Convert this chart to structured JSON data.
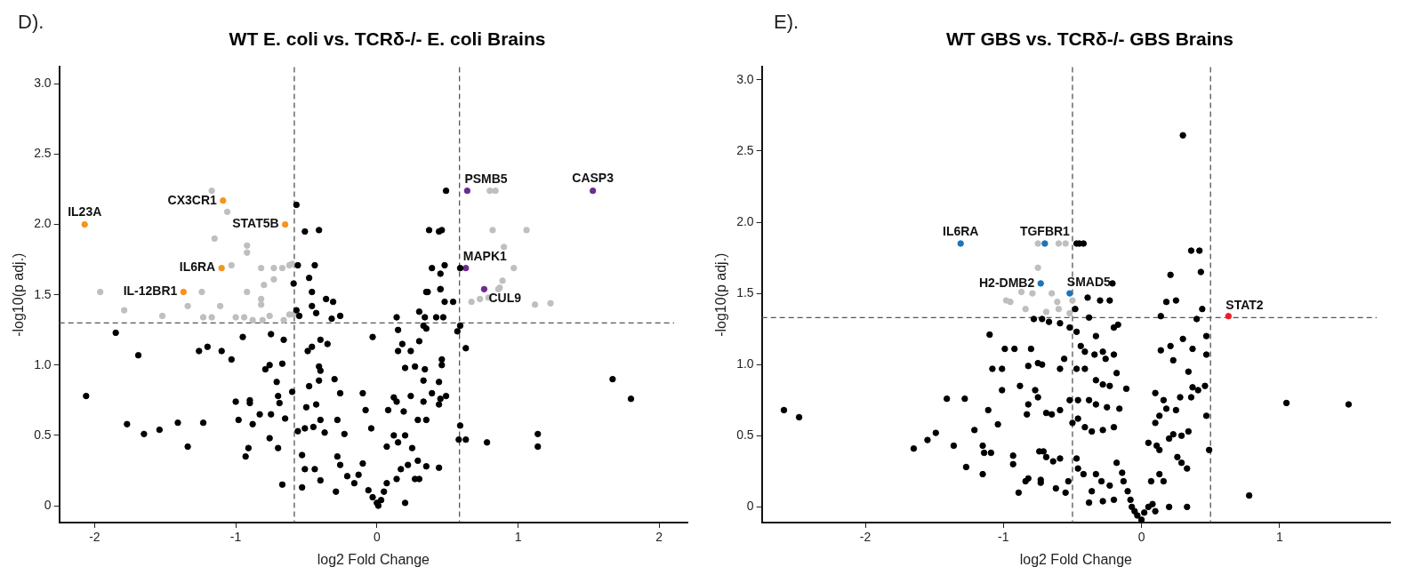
{
  "chart_data": [
    {
      "type": "scatter",
      "title": "WT E. coli vs. TCRδ-/- E. coli Brains",
      "xlabel": "log2 Fold Change",
      "ylabel": "-log10(p adj.)",
      "xlim": [
        -2.25,
        2.2
      ],
      "ylim": [
        -0.12,
        3.12
      ],
      "xticks": [
        -2,
        -1,
        0,
        1,
        2
      ],
      "yticks": [
        0,
        0.5,
        {
          "value": 1,
          "label": "1.0"
        },
        1.5,
        {
          "value": 2,
          "label": "2.0"
        },
        2.5,
        {
          "value": 3,
          "label": "3.0"
        }
      ],
      "grid": false,
      "legend": false,
      "marker": "circle",
      "ref_lines": [
        {
          "axis": "x",
          "value": -0.585,
          "color": "#555555",
          "line_style": "dashed"
        },
        {
          "axis": "x",
          "value": 0.585,
          "color": "#555555",
          "line_style": "dashed"
        },
        {
          "axis": "y",
          "value": 1.3,
          "color": "#555555",
          "line_style": "dashed"
        }
      ],
      "annotations": [
        "D).",
        {
          "text": "IL23A",
          "x": -2.07,
          "y": 2.0
        },
        {
          "text": "CX3CR1",
          "x": -1.09,
          "y": 2.17
        },
        {
          "text": "STAT5B",
          "x": -0.65,
          "y": 2.0
        },
        {
          "text": "IL6RA",
          "x": -1.1,
          "y": 1.69
        },
        {
          "text": "IL-12BR1",
          "x": -1.37,
          "y": 1.52
        },
        {
          "text": "PSMB5",
          "x": 0.64,
          "y": 2.24
        },
        {
          "text": "CASP3",
          "x": 1.53,
          "y": 2.24
        },
        {
          "text": "MAPK1",
          "x": 0.63,
          "y": 1.69
        },
        {
          "text": "CUL9",
          "x": 0.76,
          "y": 1.54
        }
      ],
      "series": [
        {
          "color": "#000000",
          "x": [
            0.49,
            -0.57,
            -0.51,
            -0.41,
            0.37,
            0.44,
            0.46,
            -0.56,
            -0.44,
            -0.48,
            -0.59,
            0.39,
            0.48,
            0.45,
            0.59,
            0.36,
            0.45,
            -0.46,
            -0.57,
            -0.55,
            -0.46,
            -0.43,
            -0.36,
            -0.31,
            -0.32,
            -0.26,
            0.35,
            0.45,
            0.48,
            0.54,
            0.47,
            0.3,
            0.34,
            0.42,
            0.59,
            0.57,
            0.63,
            -1.85,
            -1.2,
            -1.26,
            -1.1,
            -1.03,
            -0.95,
            -1.69,
            -2.06,
            -1.77,
            -1.65,
            -1.54,
            -1.41,
            -1.34,
            -1.23,
            -1.0,
            -0.98,
            -0.9,
            -0.9,
            -0.88,
            -0.91,
            -0.93,
            -0.79,
            -0.76,
            -0.75,
            -0.66,
            -0.67,
            -0.71,
            -0.7,
            -0.69,
            -0.83,
            -0.75,
            -0.65,
            -0.76,
            -0.7,
            -0.67,
            -0.6,
            -0.56,
            -0.49,
            -0.46,
            -0.4,
            -0.35,
            -0.41,
            -0.4,
            -0.48,
            -0.41,
            -0.43,
            -0.5,
            -0.51,
            -0.45,
            -0.4,
            -0.37,
            -0.53,
            -0.51,
            -0.44,
            -0.53,
            -0.4,
            -0.3,
            -0.26,
            -0.28,
            -0.23,
            -0.28,
            -0.26,
            -0.29,
            -0.21,
            -0.16,
            -0.13,
            -0.1,
            -0.1,
            -0.04,
            -0.03,
            -0.08,
            -0.06,
            -0.03,
            0.0,
            0.01,
            0.03,
            0.05,
            0.07,
            0.14,
            0.17,
            0.2,
            0.22,
            0.27,
            0.29,
            0.07,
            0.12,
            0.15,
            0.2,
            0.25,
            0.14,
            0.08,
            0.12,
            0.19,
            0.24,
            0.29,
            0.35,
            0.33,
            0.39,
            0.45,
            0.44,
            0.49,
            0.34,
            0.33,
            0.46,
            0.46,
            0.44,
            0.27,
            0.2,
            0.24,
            0.15,
            0.18,
            0.15,
            0.14,
            0.3,
            0.33,
            0.35,
            0.58,
            0.59,
            0.63,
            0.78,
            1.14,
            1.14,
            1.67,
            1.8,
            0.44,
            0.35,
            0.3
          ],
          "values": [
            2.24,
            2.14,
            1.95,
            1.96,
            1.96,
            1.95,
            1.96,
            1.71,
            1.71,
            1.62,
            1.58,
            1.69,
            1.71,
            1.65,
            1.69,
            1.52,
            1.54,
            1.52,
            1.39,
            1.35,
            1.42,
            1.37,
            1.47,
            1.45,
            1.33,
            1.35,
            1.52,
            1.54,
            1.45,
            1.45,
            1.34,
            1.38,
            1.34,
            1.34,
            1.28,
            1.24,
            1.12,
            1.23,
            1.13,
            1.1,
            1.1,
            1.04,
            1.2,
            1.07,
            0.78,
            0.58,
            0.51,
            0.54,
            0.59,
            0.42,
            0.59,
            0.74,
            0.61,
            0.75,
            0.73,
            0.58,
            0.41,
            0.35,
            0.97,
            1.0,
            1.22,
            1.18,
            1.01,
            0.88,
            0.78,
            0.73,
            0.65,
            0.65,
            0.62,
            0.48,
            0.41,
            0.15,
            0.81,
            0.53,
            1.1,
            1.13,
            1.18,
            1.15,
            0.99,
            0.96,
            0.85,
            0.89,
            0.72,
            0.7,
            0.55,
            0.56,
            0.61,
            0.52,
            0.36,
            0.26,
            0.26,
            0.13,
            0.18,
            0.9,
            0.8,
            0.61,
            0.51,
            0.35,
            0.29,
            0.1,
            0.21,
            0.16,
            0.22,
            0.3,
            0.8,
            0.55,
            1.2,
            0.68,
            0.11,
            0.06,
            0.02,
            0.0,
            0.04,
            0.1,
            0.16,
            0.19,
            0.26,
            0.02,
            0.29,
            0.19,
            0.32,
            0.42,
            0.5,
            0.45,
            0.5,
            0.41,
            0.74,
            0.68,
            0.77,
            0.67,
            0.78,
            0.61,
            0.61,
            0.74,
            0.8,
            0.76,
            0.72,
            0.78,
            0.97,
            0.89,
            1.04,
            1.0,
            0.88,
            0.99,
            0.98,
            1.1,
            1.1,
            1.15,
            1.25,
            1.34,
            1.17,
            1.28,
            1.26,
            0.47,
            0.57,
            0.47,
            0.45,
            0.51,
            0.42,
            0.9,
            0.76,
            0.27,
            0.28,
            0.19
          ]
        },
        {
          "color": "#bfbfbf",
          "x": [
            -1.17,
            -1.06,
            -1.15,
            -0.92,
            -0.92,
            -1.03,
            -0.82,
            -0.73,
            -0.67,
            -0.62,
            -0.6,
            -0.8,
            -0.73,
            0.8,
            0.84,
            0.82,
            1.06,
            0.9,
            0.97,
            0.89,
            0.87,
            -1.96,
            -1.24,
            -0.92,
            -0.82,
            -0.82,
            -1.79,
            -1.52,
            -1.34,
            -1.11,
            -1.23,
            -1.17,
            -1.0,
            -0.94,
            -0.88,
            -0.81,
            -0.76,
            -0.66,
            -0.62,
            -0.59,
            0.67,
            0.73,
            0.79,
            0.86,
            1.12,
            1.23
          ],
          "values": [
            2.24,
            2.09,
            1.9,
            1.85,
            1.8,
            1.71,
            1.69,
            1.69,
            1.69,
            1.71,
            1.72,
            1.57,
            1.61,
            2.24,
            2.24,
            1.96,
            1.96,
            1.84,
            1.69,
            1.6,
            1.55,
            1.52,
            1.52,
            1.52,
            1.47,
            1.43,
            1.39,
            1.35,
            1.42,
            1.42,
            1.34,
            1.34,
            1.34,
            1.34,
            1.32,
            1.32,
            1.35,
            1.32,
            1.36,
            1.36,
            1.45,
            1.47,
            1.48,
            1.54,
            1.43,
            1.44
          ]
        },
        {
          "color": "#f7941d",
          "x": [
            -2.07,
            -1.09,
            -0.65,
            -1.1,
            -1.37
          ],
          "values": [
            2.0,
            2.17,
            2.0,
            1.69,
            1.52
          ]
        },
        {
          "color": "#6a2c91",
          "x": [
            0.64,
            1.53,
            0.63,
            0.76
          ],
          "values": [
            2.24,
            2.24,
            1.69,
            1.54
          ]
        }
      ]
    },
    {
      "type": "scatter",
      "title": "WT GBS vs. TCRδ-/- GBS Brains",
      "xlabel": "log2 Fold Change",
      "ylabel": "-log10(p adj.)",
      "xlim": [
        -2.75,
        1.8
      ],
      "ylim": [
        -0.11,
        3.09
      ],
      "xticks": [
        -2,
        -1,
        0,
        1
      ],
      "yticks": [
        0,
        0.5,
        {
          "value": 1,
          "label": "1.0"
        },
        1.5,
        {
          "value": 2,
          "label": "2.0"
        },
        2.5,
        {
          "value": 3,
          "label": "3.0"
        }
      ],
      "grid": false,
      "legend": false,
      "marker": "circle",
      "ref_lines": [
        {
          "axis": "x",
          "value": -0.5,
          "color": "#555555",
          "line_style": "dashed"
        },
        {
          "axis": "x",
          "value": 0.5,
          "color": "#555555",
          "line_style": "dashed"
        },
        {
          "axis": "y",
          "value": 1.33,
          "color": "#555555",
          "line_style": "dashed"
        }
      ],
      "annotations": [
        "E).",
        {
          "text": "IL6RA",
          "x": -1.31,
          "y": 1.85
        },
        {
          "text": "TGFBR1",
          "x": -0.7,
          "y": 1.85
        },
        {
          "text": "H2-DMB2",
          "x": -0.73,
          "y": 1.57
        },
        {
          "text": "SMAD5",
          "x": -0.52,
          "y": 1.5
        },
        {
          "text": "STAT2",
          "x": 0.63,
          "y": 1.34
        }
      ],
      "series": [
        {
          "color": "#000000",
          "x": [
            0.3,
            -0.47,
            -0.45,
            -0.42,
            0.36,
            0.42,
            0.21,
            0.43,
            -0.21,
            -0.39,
            -0.3,
            -0.23,
            0.18,
            0.25,
            0.14,
            0.44,
            0.4,
            -0.48,
            -0.38,
            -0.78,
            -0.72,
            -0.67,
            -0.59,
            -0.52,
            -0.47,
            -0.2,
            -0.17,
            -0.33,
            -1.1,
            -0.99,
            -0.92,
            -0.8,
            -1.08,
            -1.01,
            -0.82,
            -0.75,
            -0.72,
            -0.59,
            -0.56,
            -0.44,
            -0.41,
            -0.47,
            -0.41,
            -0.34,
            -0.28,
            -0.26,
            -0.2,
            -0.33,
            -0.28,
            -0.23,
            -0.18,
            -0.11,
            -1.01,
            -1.41,
            -1.28,
            -0.88,
            -0.77,
            -0.75,
            -0.82,
            -0.83,
            -0.69,
            -0.65,
            -0.59,
            -0.52,
            -0.46,
            -0.38,
            -0.33,
            -0.25,
            -0.16,
            -0.46,
            -0.5,
            -0.41,
            -0.36,
            -0.28,
            -0.2,
            -1.11,
            -1.04,
            -1.21,
            -2.59,
            -2.48,
            -1.65,
            -1.55,
            -1.49,
            -1.36,
            -1.15,
            -1.14,
            -1.09,
            -1.27,
            -1.15,
            -0.93,
            -0.93,
            -0.89,
            -0.84,
            -0.82,
            -0.73,
            -0.73,
            -0.74,
            -0.71,
            -0.69,
            -0.64,
            -0.59,
            -0.62,
            -0.55,
            -0.53,
            -0.47,
            -0.46,
            -0.42,
            -0.36,
            -0.38,
            -0.33,
            -0.29,
            -0.28,
            -0.23,
            -0.2,
            -0.18,
            -0.14,
            -0.13,
            -0.1,
            -0.08,
            -0.07,
            -0.05,
            -0.03,
            0.0,
            0.02,
            0.05,
            0.08,
            0.1,
            0.07,
            0.13,
            0.16,
            0.2,
            0.33,
            0.05,
            0.11,
            0.13,
            0.2,
            0.23,
            0.29,
            0.34,
            0.33,
            0.29,
            0.26,
            0.1,
            0.13,
            0.18,
            0.25,
            0.28,
            0.36,
            0.41,
            0.46,
            0.37,
            0.34,
            0.1,
            0.16,
            0.14,
            0.21,
            0.23,
            0.3,
            0.37,
            0.47,
            0.47,
            0.47,
            0.49,
            0.78,
            1.05,
            1.5
          ],
          "values": [
            2.61,
            1.85,
            1.85,
            1.85,
            1.8,
            1.8,
            1.63,
            1.65,
            1.57,
            1.47,
            1.45,
            1.45,
            1.44,
            1.45,
            1.34,
            1.39,
            1.32,
            1.39,
            1.33,
            1.32,
            1.32,
            1.3,
            1.29,
            1.26,
            1.23,
            1.26,
            1.28,
            1.2,
            1.21,
            1.11,
            1.11,
            1.11,
            0.97,
            0.97,
            0.99,
            1.01,
            1.0,
            0.97,
            1.04,
            1.13,
            1.09,
            0.97,
            0.97,
            1.07,
            1.09,
            1.04,
            1.07,
            0.89,
            0.86,
            0.85,
            0.94,
            0.83,
            0.82,
            0.76,
            0.76,
            0.85,
            0.82,
            0.77,
            0.72,
            0.65,
            0.66,
            0.65,
            0.68,
            0.75,
            0.75,
            0.75,
            0.72,
            0.7,
            0.69,
            0.62,
            0.59,
            0.56,
            0.53,
            0.54,
            0.56,
            0.68,
            0.58,
            0.54,
            0.68,
            0.63,
            0.41,
            0.47,
            0.52,
            0.43,
            0.43,
            0.38,
            0.38,
            0.28,
            0.23,
            0.36,
            0.3,
            0.1,
            0.18,
            0.2,
            0.19,
            0.17,
            0.39,
            0.39,
            0.35,
            0.32,
            0.34,
            0.13,
            0.1,
            0.18,
            0.34,
            0.27,
            0.23,
            0.11,
            0.03,
            0.23,
            0.18,
            0.04,
            0.15,
            0.05,
            0.31,
            0.24,
            0.18,
            0.11,
            0.05,
            0.0,
            -0.03,
            -0.06,
            -0.09,
            -0.04,
            0.0,
            0.02,
            -0.03,
            0.18,
            0.23,
            0.18,
            0.0,
            0.0,
            0.45,
            0.43,
            0.4,
            0.48,
            0.51,
            0.5,
            0.53,
            0.27,
            0.31,
            0.35,
            0.59,
            0.64,
            0.69,
            0.68,
            0.77,
            0.77,
            0.82,
            0.85,
            0.84,
            0.95,
            0.8,
            0.75,
            1.1,
            1.13,
            1.03,
            1.18,
            1.11,
            1.07,
            1.2,
            0.64,
            0.4,
            0.08,
            0.73,
            0.72
          ]
        },
        {
          "color": "#bfbfbf",
          "x": [
            -0.75,
            -0.6,
            -0.55,
            -0.75,
            -0.87,
            -0.79,
            -0.65,
            -0.98,
            -0.95,
            -0.84,
            -0.69,
            -0.61,
            -0.6,
            -0.52,
            -0.5
          ],
          "values": [
            1.85,
            1.85,
            1.85,
            1.68,
            1.51,
            1.5,
            1.5,
            1.45,
            1.44,
            1.39,
            1.37,
            1.44,
            1.39,
            1.36,
            1.45
          ]
        },
        {
          "color": "#1a75bb",
          "x": [
            -1.31,
            -0.7,
            -0.73,
            -0.52
          ],
          "values": [
            1.85,
            1.85,
            1.57,
            1.5
          ]
        },
        {
          "color": "#ed1c24",
          "x": [
            0.63
          ],
          "values": [
            1.34
          ]
        }
      ]
    }
  ]
}
